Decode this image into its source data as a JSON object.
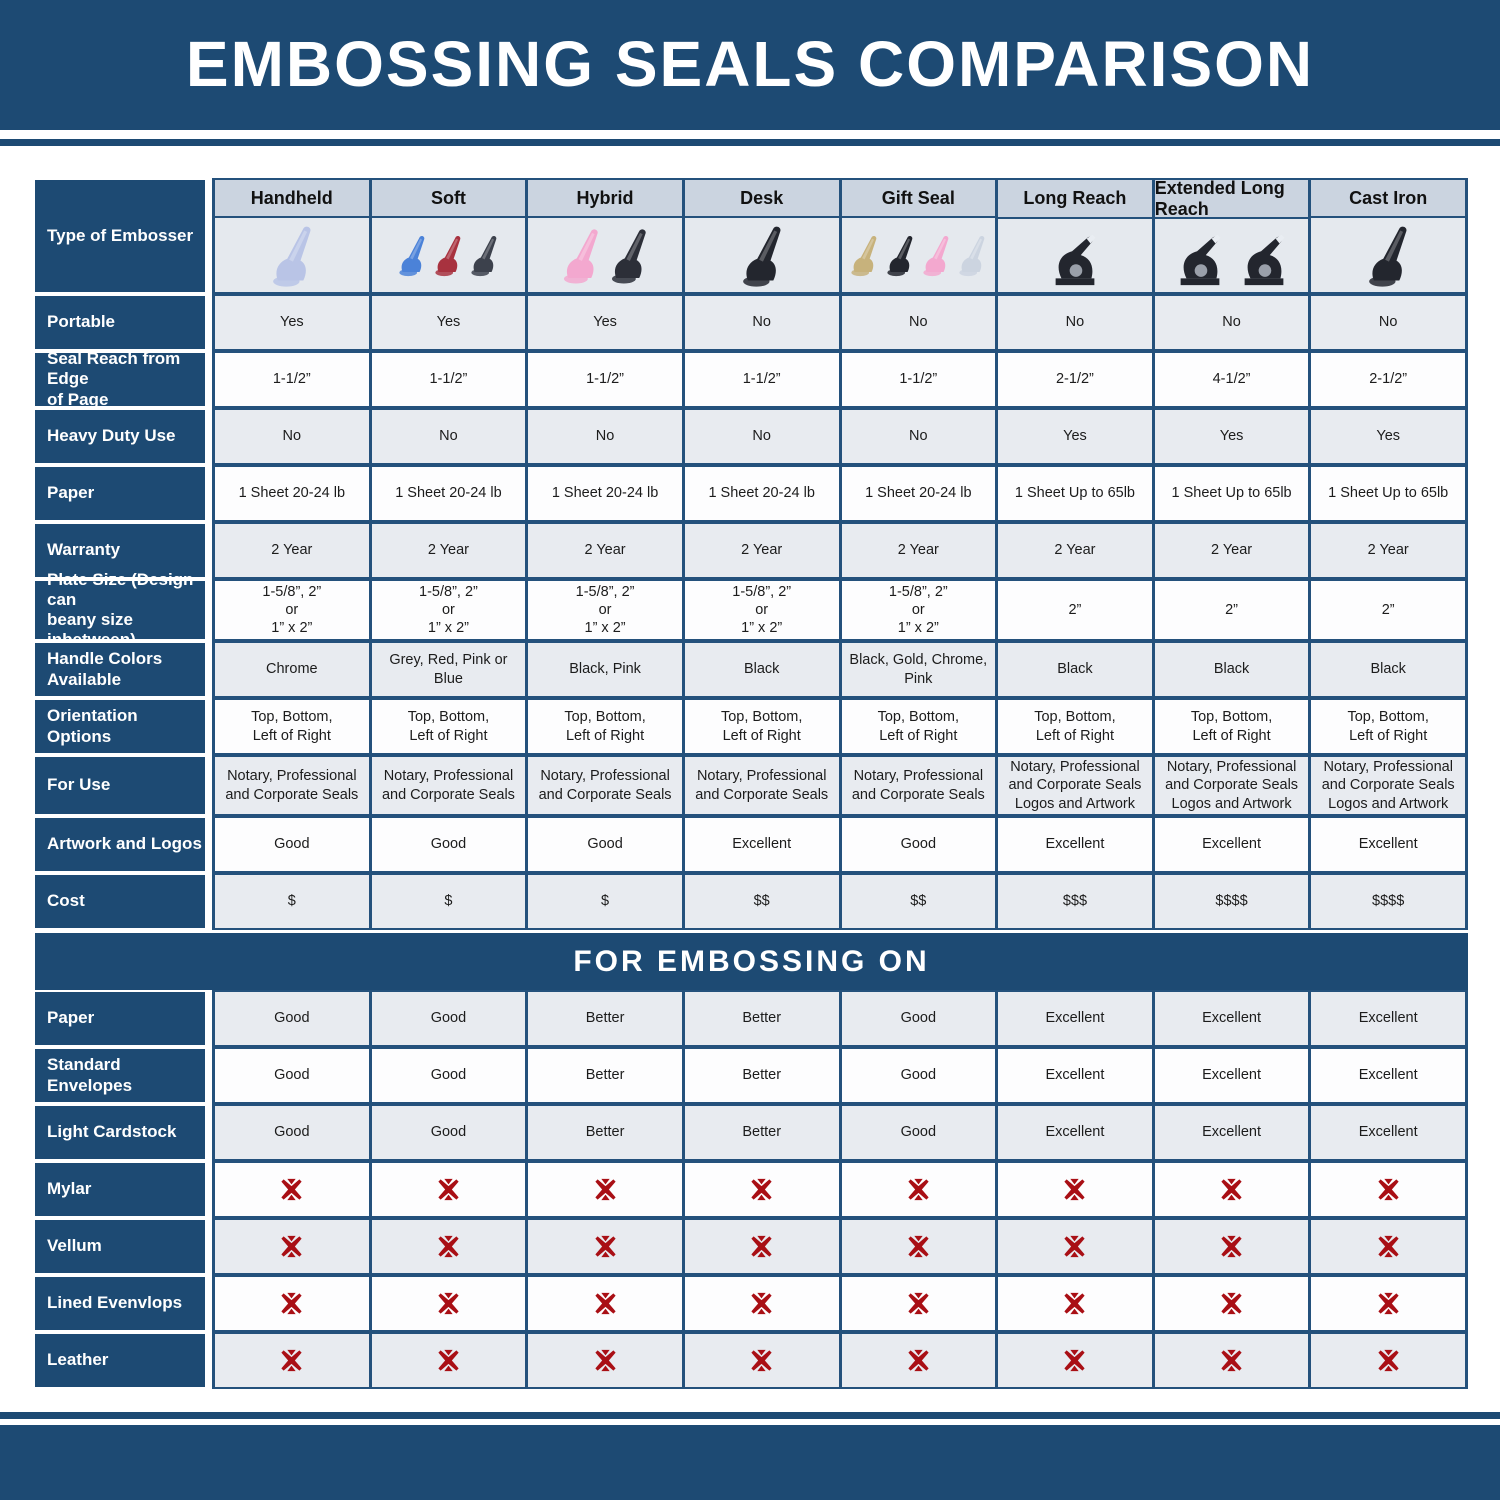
{
  "title": "EMBOSSING SEALS COMPARISON",
  "section_header": "FOR EMBOSSING ON",
  "left_header": "Type of Embosser",
  "colors": {
    "dark_blue": "#1d4a73",
    "grid_border": "#24517c",
    "header_cell": "#cbd4e0",
    "image_cell": "#e5e9ee",
    "row_gray": "#e8ebf0",
    "row_white": "#fdfdfe",
    "x_red": "#a90f15"
  },
  "icons": {
    "not_suitable": "red-x-icon"
  },
  "columns": [
    {
      "label": "Handheld",
      "image": {
        "style": "handheld",
        "colors": [
          "#b9c4e6"
        ]
      }
    },
    {
      "label": "Soft",
      "image": {
        "style": "handheld",
        "colors": [
          "#4b82d8",
          "#a8323f",
          "#3c414c"
        ]
      }
    },
    {
      "label": "Hybrid",
      "image": {
        "style": "handheld",
        "colors": [
          "#f3a8cf",
          "#2c2f38"
        ]
      }
    },
    {
      "label": "Desk",
      "image": {
        "style": "handheld",
        "colors": [
          "#23262e"
        ]
      }
    },
    {
      "label": "Gift Seal",
      "image": {
        "style": "handheld",
        "colors": [
          "#c7b27c",
          "#23262e",
          "#f3a8cf",
          "#ccd4e0"
        ]
      }
    },
    {
      "label": "Long Reach",
      "image": {
        "style": "press",
        "colors": [
          "#23262e"
        ]
      }
    },
    {
      "label": "Extended Long Reach",
      "image": {
        "style": "press",
        "colors": [
          "#23262e",
          "#23262e"
        ]
      }
    },
    {
      "label": "Cast Iron",
      "image": {
        "style": "handheld",
        "colors": [
          "#23262e"
        ]
      }
    }
  ],
  "spec_rows": [
    {
      "key": "portable",
      "label": "Portable",
      "values": [
        "Yes",
        "Yes",
        "Yes",
        "No",
        "No",
        "No",
        "No",
        "No"
      ]
    },
    {
      "key": "seal_reach",
      "label": "Seal Reach from Edge\nof Page",
      "values": [
        "1-1/2”",
        "1-1/2”",
        "1-1/2”",
        "1-1/2”",
        "1-1/2”",
        "2-1/2”",
        "4-1/2”",
        "2-1/2”"
      ]
    },
    {
      "key": "heavy_duty",
      "label": "Heavy Duty Use",
      "values": [
        "No",
        "No",
        "No",
        "No",
        "No",
        "Yes",
        "Yes",
        "Yes"
      ]
    },
    {
      "key": "paper",
      "label": "Paper",
      "values": [
        "1 Sheet 20-24 lb",
        "1 Sheet 20-24 lb",
        "1 Sheet 20-24 lb",
        "1 Sheet 20-24 lb",
        "1 Sheet 20-24 lb",
        "1 Sheet Up to 65lb",
        "1 Sheet Up to 65lb",
        "1 Sheet Up to 65lb"
      ]
    },
    {
      "key": "warranty",
      "label": "Warranty",
      "values": [
        "2 Year",
        "2 Year",
        "2 Year",
        "2 Year",
        "2 Year",
        "2 Year",
        "2 Year",
        "2 Year"
      ]
    },
    {
      "key": "plate_size",
      "label": "Plate Size (Design can\nbeany size inbetween)",
      "values": [
        "1-5/8”, 2”\nor\n1” x 2”",
        "1-5/8”, 2”\nor\n1” x 2”",
        "1-5/8”, 2”\nor\n1” x 2”",
        "1-5/8”, 2”\nor\n1” x 2”",
        "1-5/8”, 2”\nor\n1” x 2”",
        "2”",
        "2”",
        "2”"
      ]
    },
    {
      "key": "handle_colors",
      "label": "Handle Colors Available",
      "values": [
        "Chrome",
        "Grey, Red, Pink or Blue",
        "Black, Pink",
        "Black",
        "Black, Gold, Chrome, Pink",
        "Black",
        "Black",
        "Black"
      ]
    },
    {
      "key": "orientation",
      "label": "Orientation Options",
      "values": [
        "Top, Bottom,\nLeft of Right",
        "Top, Bottom,\nLeft of Right",
        "Top, Bottom,\nLeft of Right",
        "Top, Bottom,\nLeft of Right",
        "Top, Bottom,\nLeft of Right",
        "Top, Bottom,\nLeft of Right",
        "Top, Bottom,\nLeft of Right",
        "Top, Bottom,\nLeft of Right"
      ]
    },
    {
      "key": "for_use",
      "label": "For Use",
      "values": [
        "Notary, Professional\nand Corporate Seals",
        "Notary, Professional\nand Corporate Seals",
        "Notary, Professional\nand Corporate Seals",
        "Notary, Professional\nand Corporate Seals",
        "Notary, Professional\nand Corporate Seals",
        "Notary, Professional\nand Corporate Seals\nLogos and Artwork",
        "Notary, Professional\nand Corporate Seals\nLogos and Artwork",
        "Notary, Professional\nand Corporate Seals\nLogos and Artwork"
      ]
    },
    {
      "key": "artwork",
      "label": "Artwork and Logos",
      "values": [
        "Good",
        "Good",
        "Good",
        "Excellent",
        "Good",
        "Excellent",
        "Excellent",
        "Excellent"
      ]
    },
    {
      "key": "cost",
      "label": "Cost",
      "values": [
        "$",
        "$",
        "$",
        "$$",
        "$$",
        "$$$",
        "$$$$",
        "$$$$"
      ]
    }
  ],
  "embossing_rows": [
    {
      "key": "paper",
      "label": "Paper",
      "values": [
        "Good",
        "Good",
        "Better",
        "Better",
        "Good",
        "Excellent",
        "Excellent",
        "Excellent"
      ]
    },
    {
      "key": "standard_envelopes",
      "label": "Standard Envelopes",
      "values": [
        "Good",
        "Good",
        "Better",
        "Better",
        "Good",
        "Excellent",
        "Excellent",
        "Excellent"
      ]
    },
    {
      "key": "light_cardstock",
      "label": "Light Cardstock",
      "values": [
        "Good",
        "Good",
        "Better",
        "Better",
        "Good",
        "Excellent",
        "Excellent",
        "Excellent"
      ]
    },
    {
      "key": "mylar",
      "label": "Mylar",
      "values": [
        "x",
        "x",
        "x",
        "x",
        "x",
        "x",
        "x",
        "x"
      ]
    },
    {
      "key": "vellum",
      "label": "Vellum",
      "values": [
        "x",
        "x",
        "x",
        "x",
        "x",
        "x",
        "x",
        "x"
      ]
    },
    {
      "key": "lined_evenvlops",
      "label": "Lined Evenvlops",
      "values": [
        "x",
        "x",
        "x",
        "x",
        "x",
        "x",
        "x",
        "x"
      ]
    },
    {
      "key": "leather",
      "label": "Leather",
      "values": [
        "x",
        "x",
        "x",
        "x",
        "x",
        "x",
        "x",
        "x"
      ]
    }
  ]
}
